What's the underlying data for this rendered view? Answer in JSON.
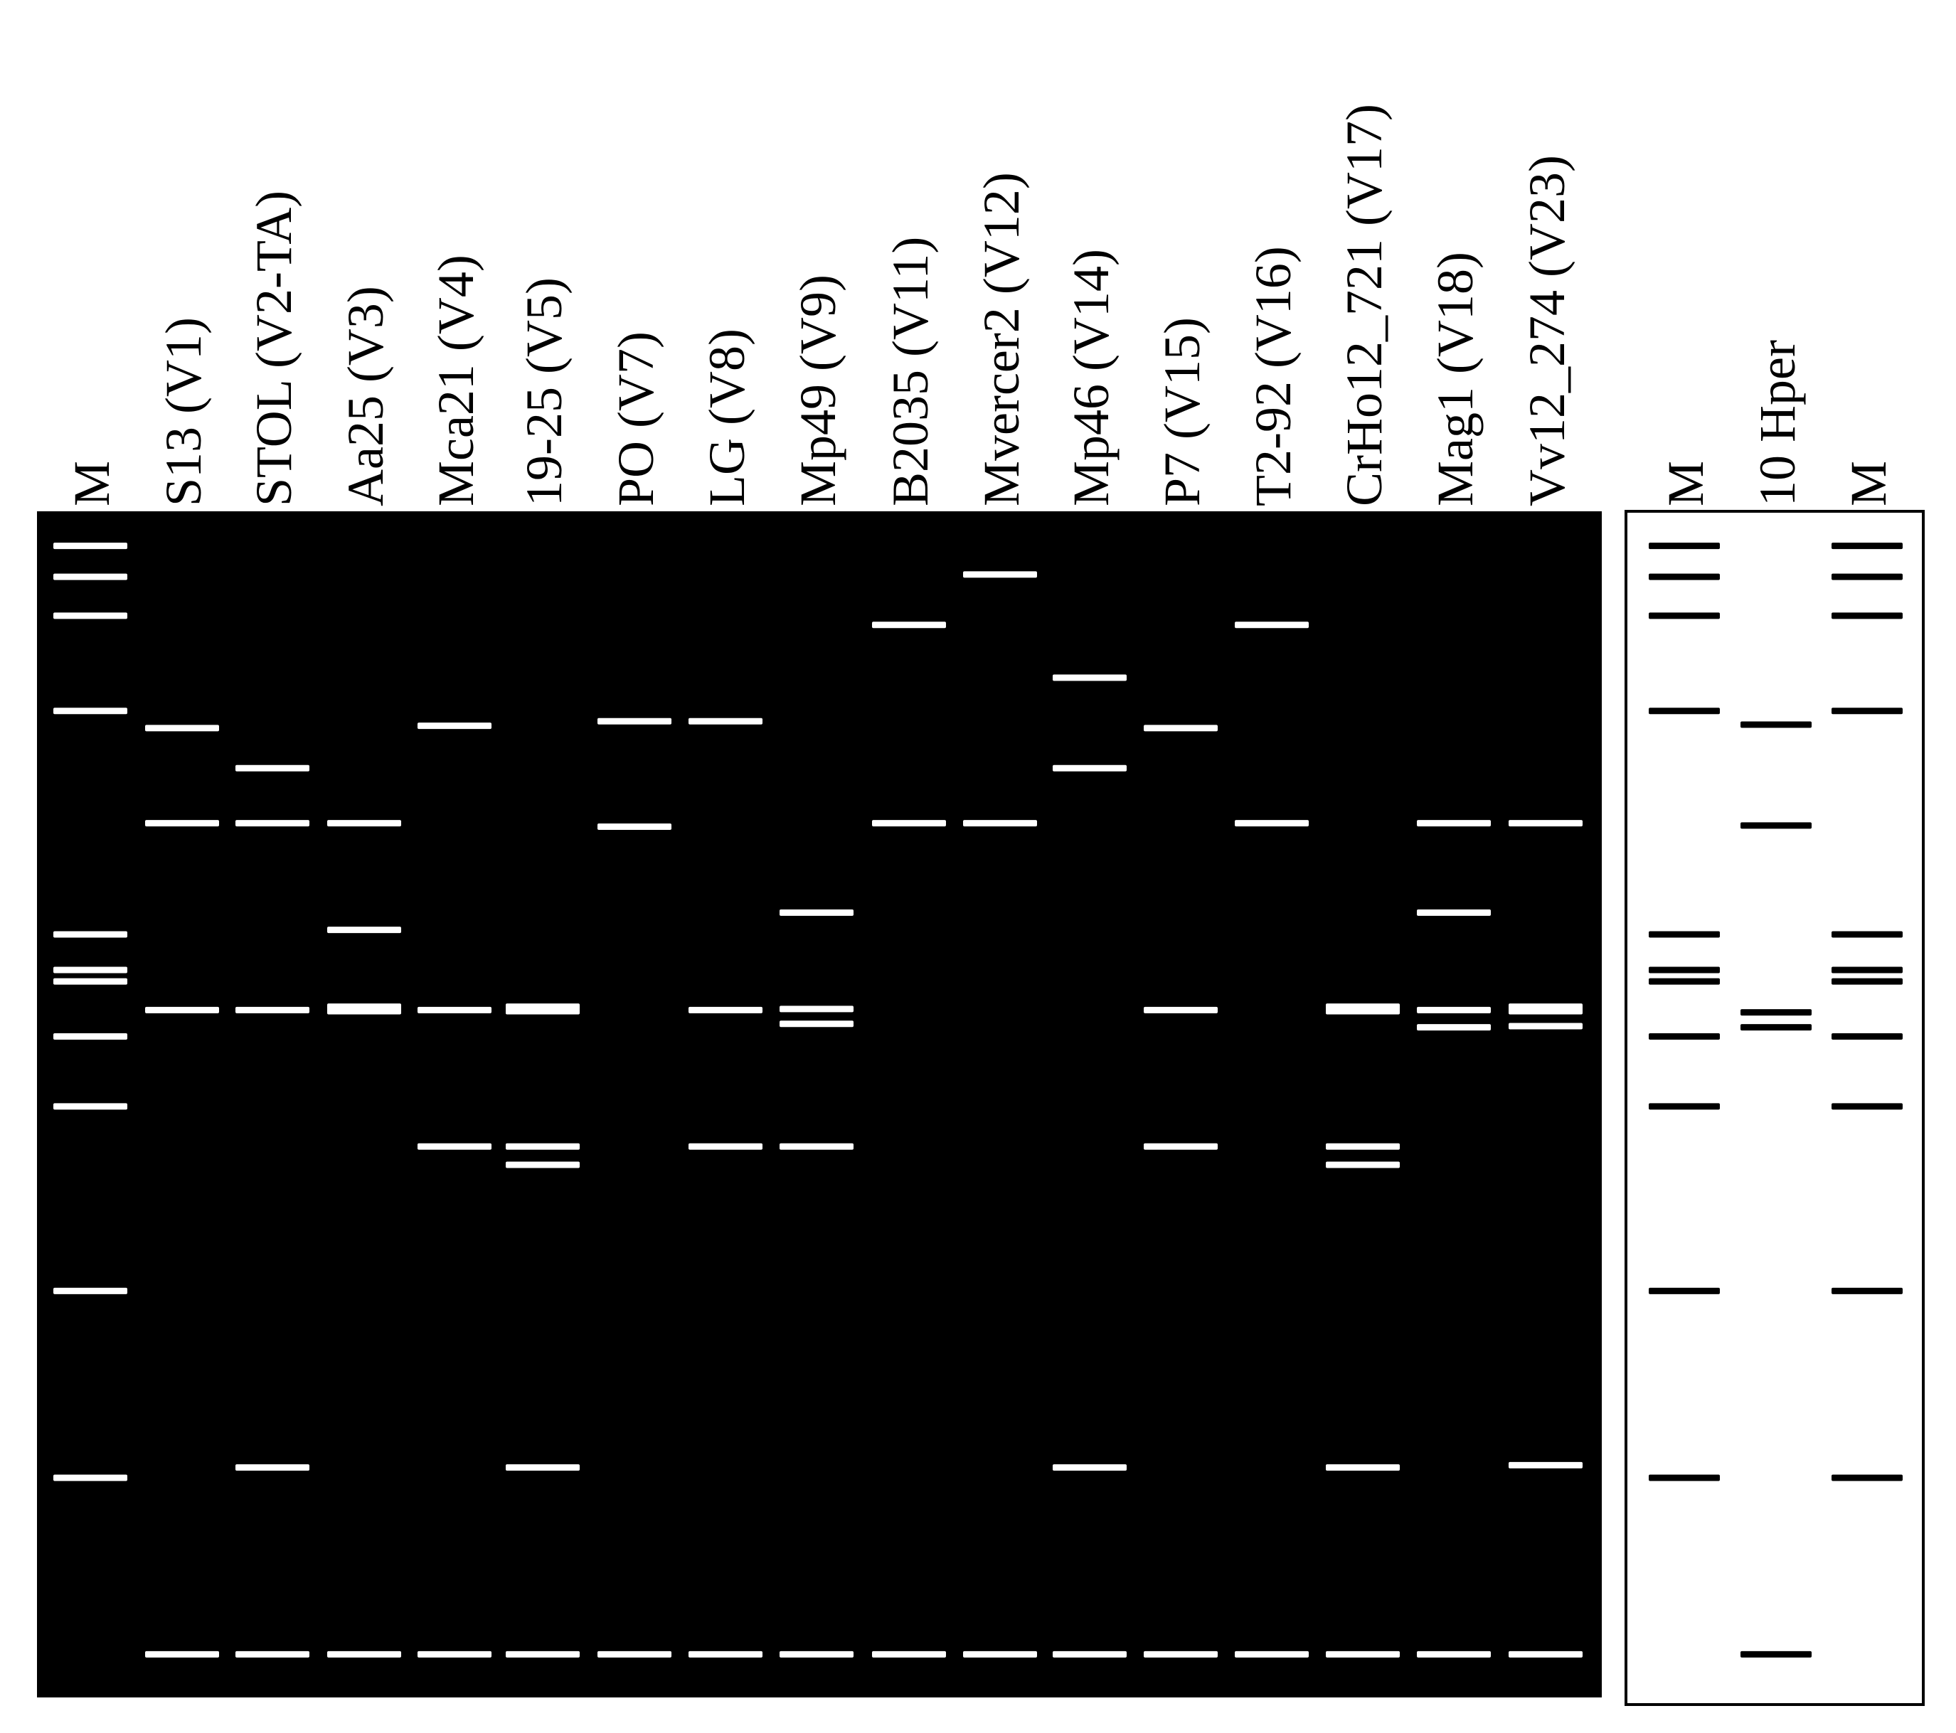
{
  "colors": {
    "gel_background": "#000000",
    "gel_band": "#ffffff",
    "diagram_background": "#ffffff",
    "diagram_band": "#000000",
    "diagram_border": "#000000"
  },
  "gel": {
    "lanes": [
      {
        "label": "M",
        "bands": [
          0.014,
          0.041,
          0.075,
          0.158,
          0.353,
          0.384,
          0.394,
          0.442,
          0.503,
          0.664,
          0.827
        ]
      },
      {
        "label": "S13 (V1)",
        "bands": [
          0.173,
          0.256,
          0.419,
          0.981
        ]
      },
      {
        "label": "STOL (V2-TA)",
        "bands": [
          0.208,
          0.256,
          0.419,
          0.818,
          0.981
        ]
      },
      {
        "label": "Aa25 (V3)",
        "bands": [
          0.256,
          0.349,
          0.416,
          0.42,
          0.981
        ]
      },
      {
        "label": "Mca21 (V4)",
        "bands": [
          0.171,
          0.419,
          0.538,
          0.981
        ]
      },
      {
        "label": "19-25 (V5)",
        "bands": [
          0.416,
          0.42,
          0.538,
          0.554,
          0.818,
          0.981
        ]
      },
      {
        "label": "PO (V7)",
        "bands": [
          0.167,
          0.259,
          0.981
        ]
      },
      {
        "label": "LG (V8)",
        "bands": [
          0.167,
          0.419,
          0.538,
          0.981
        ]
      },
      {
        "label": "Mp49 (V9)",
        "bands": [
          0.334,
          0.418,
          0.431,
          0.538,
          0.981
        ]
      },
      {
        "label": "B2035 (V11)",
        "bands": [
          0.083,
          0.256,
          0.981
        ]
      },
      {
        "label": "Mvercer2 (V12)",
        "bands": [
          0.039,
          0.256,
          0.981
        ]
      },
      {
        "label": "Mp46 (V14)",
        "bands": [
          0.129,
          0.208,
          0.818,
          0.981
        ]
      },
      {
        "label": "P7 (V15)",
        "bands": [
          0.173,
          0.419,
          0.538,
          0.981
        ]
      },
      {
        "label": "T2-92 (V16)",
        "bands": [
          0.083,
          0.256,
          0.981
        ]
      },
      {
        "label": "CrHo12_721 (V17)",
        "bands": [
          0.416,
          0.42,
          0.538,
          0.554,
          0.818,
          0.981
        ]
      },
      {
        "label": "Mag1 (V18)",
        "bands": [
          0.256,
          0.334,
          0.419,
          0.434,
          0.981
        ]
      },
      {
        "label": "Vv12_274 (V23)",
        "bands": [
          0.256,
          0.416,
          0.42,
          0.433,
          0.816,
          0.981
        ]
      }
    ]
  },
  "diagram": {
    "lanes": [
      {
        "label": "M",
        "bands": [
          0.014,
          0.041,
          0.075,
          0.158,
          0.353,
          0.384,
          0.394,
          0.442,
          0.503,
          0.664,
          0.827
        ]
      },
      {
        "label": "10 Hper",
        "bands": [
          0.17,
          0.258,
          0.421,
          0.434,
          0.981
        ]
      },
      {
        "label": "M",
        "bands": [
          0.014,
          0.041,
          0.075,
          0.158,
          0.353,
          0.384,
          0.394,
          0.442,
          0.503,
          0.664,
          0.827
        ]
      }
    ]
  }
}
